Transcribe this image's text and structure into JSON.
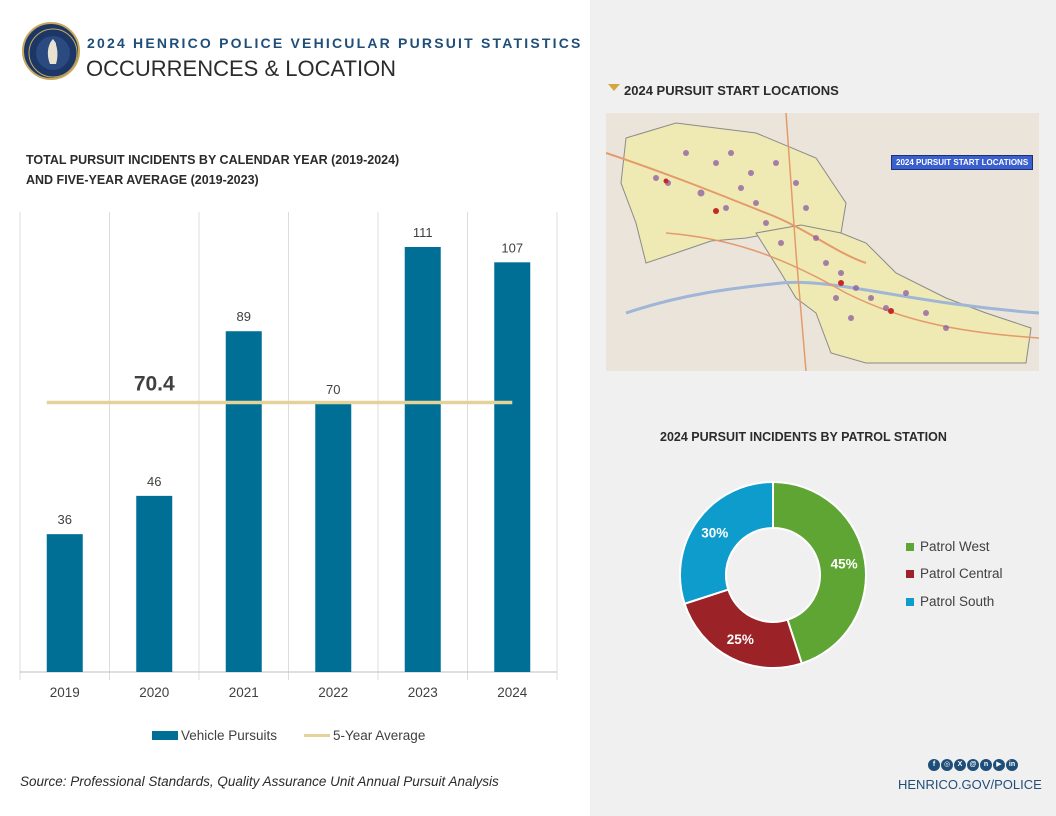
{
  "header": {
    "title": "2024 HENRICO POLICE VEHICULAR PURSUIT STATISTICS",
    "subtitle": "OCCURRENCES & LOCATION"
  },
  "bar_section": {
    "title_line1": "TOTAL PURSUIT INCIDENTS BY CALENDAR YEAR (2019-2024)",
    "title_line2": "AND FIVE-YEAR AVERAGE (2019-2023)"
  },
  "map_section": {
    "title": "2024 PURSUIT START LOCATIONS",
    "map_label": "2024 PURSUIT START LOCATIONS"
  },
  "source": "Source: Professional Standards, Quality Assurance Unit Annual Pursuit Analysis",
  "footer": {
    "site": "HENRICO.GOV/POLICE"
  },
  "colors": {
    "bar": "#006f95",
    "average_line": "#e3d39a",
    "patrol_west": "#5fa533",
    "patrol_central": "#9b2226",
    "patrol_south": "#0e9ccc"
  },
  "chart_data": [
    {
      "type": "bar",
      "title": "TOTAL PURSUIT INCIDENTS BY CALENDAR YEAR (2019-2024) AND FIVE-YEAR AVERAGE (2019-2023)",
      "categories": [
        "2019",
        "2020",
        "2021",
        "2022",
        "2023",
        "2024"
      ],
      "series": [
        {
          "name": "Vehicle Pursuits",
          "values": [
            36,
            46,
            89,
            70,
            111,
            107
          ]
        }
      ],
      "average": {
        "name": "5-Year Average",
        "value": 70.4,
        "label": "70.4"
      },
      "ylim": [
        0,
        120
      ],
      "grid": "vertical",
      "legend": "bottom"
    },
    {
      "type": "pie",
      "title": "2024 PURSUIT INCIDENTS BY PATROL STATION",
      "slices": [
        {
          "name": "Patrol West",
          "value": 45,
          "label": "45%"
        },
        {
          "name": "Patrol Central",
          "value": 25,
          "label": "25%"
        },
        {
          "name": "Patrol South",
          "value": 30,
          "label": "30%"
        }
      ],
      "legend": "right"
    }
  ]
}
